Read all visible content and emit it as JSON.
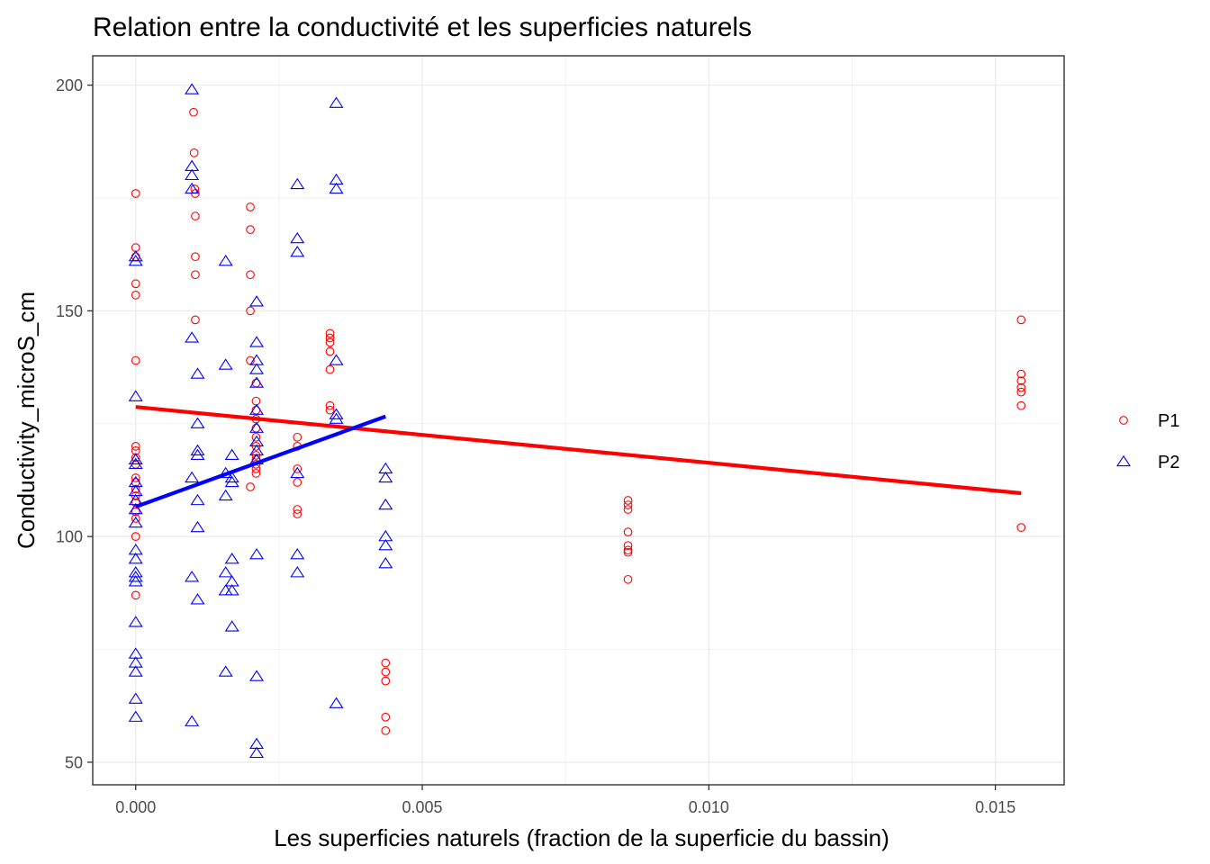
{
  "chart_data": {
    "type": "scatter",
    "title": "Relation entre la conductivité et les superficies naturels",
    "xlabel": "Les superficies naturels (fraction de la superficie du bassin)",
    "ylabel": "Conductivity_microS_cm",
    "xlim": [
      -0.00075,
      0.0162
    ],
    "ylim": [
      45,
      206.5
    ],
    "x_ticks": [
      0.0,
      0.005,
      0.01,
      0.015
    ],
    "x_tick_labels": [
      "0.000",
      "0.005",
      "0.010",
      "0.015"
    ],
    "y_ticks": [
      50,
      100,
      150,
      200
    ],
    "y_tick_labels": [
      "50",
      "100",
      "150",
      "200"
    ],
    "grid": true,
    "legend_position": "right",
    "series": [
      {
        "name": "P1",
        "marker": "circle",
        "color": "#ff0000",
        "points": [
          [
            0.0,
            176
          ],
          [
            0.0,
            164
          ],
          [
            0.0,
            162
          ],
          [
            0.0,
            156
          ],
          [
            0.0,
            153.5
          ],
          [
            0.0,
            139
          ],
          [
            0.0,
            120
          ],
          [
            0.0,
            119
          ],
          [
            0.0,
            117.5
          ],
          [
            0.0,
            116
          ],
          [
            0.0,
            113
          ],
          [
            0.0,
            112
          ],
          [
            0.0,
            110.5
          ],
          [
            0.0,
            109
          ],
          [
            0.0,
            107.5
          ],
          [
            0.0,
            105.5
          ],
          [
            0.0,
            104
          ],
          [
            0.0,
            100
          ],
          [
            0.0,
            87
          ],
          [
            0.00101,
            194
          ],
          [
            0.00102,
            185
          ],
          [
            0.00103,
            177
          ],
          [
            0.00104,
            176
          ],
          [
            0.00104,
            171
          ],
          [
            0.00104,
            162
          ],
          [
            0.00104,
            158
          ],
          [
            0.00104,
            148
          ],
          [
            0.002,
            173
          ],
          [
            0.002,
            168
          ],
          [
            0.002,
            158
          ],
          [
            0.002,
            150
          ],
          [
            0.002,
            139
          ],
          [
            0.0021,
            134
          ],
          [
            0.0021,
            130
          ],
          [
            0.0021,
            128
          ],
          [
            0.0021,
            126
          ],
          [
            0.0021,
            124
          ],
          [
            0.0021,
            122
          ],
          [
            0.0021,
            120
          ],
          [
            0.0021,
            118
          ],
          [
            0.0021,
            117
          ],
          [
            0.0021,
            116
          ],
          [
            0.0021,
            115
          ],
          [
            0.0021,
            114
          ],
          [
            0.002,
            111
          ],
          [
            0.00282,
            122
          ],
          [
            0.00282,
            120
          ],
          [
            0.00282,
            115
          ],
          [
            0.00282,
            112
          ],
          [
            0.00282,
            106
          ],
          [
            0.00282,
            105
          ],
          [
            0.00339,
            145
          ],
          [
            0.00339,
            144
          ],
          [
            0.00339,
            143
          ],
          [
            0.00339,
            141
          ],
          [
            0.00339,
            137
          ],
          [
            0.00339,
            129
          ],
          [
            0.00339,
            128
          ],
          [
            0.00436,
            72
          ],
          [
            0.00436,
            70
          ],
          [
            0.00436,
            68
          ],
          [
            0.00436,
            60
          ],
          [
            0.00436,
            57
          ],
          [
            0.00859,
            108
          ],
          [
            0.00859,
            107
          ],
          [
            0.00859,
            106
          ],
          [
            0.00859,
            101
          ],
          [
            0.00859,
            98
          ],
          [
            0.00859,
            97
          ],
          [
            0.00859,
            96.5
          ],
          [
            0.00859,
            90.5
          ],
          [
            0.01545,
            148
          ],
          [
            0.01545,
            136
          ],
          [
            0.01545,
            134.5
          ],
          [
            0.01545,
            133
          ],
          [
            0.01545,
            132
          ],
          [
            0.01545,
            129
          ],
          [
            0.01545,
            102
          ]
        ],
        "trend": [
          [
            0.0,
            128.7
          ],
          [
            0.01545,
            109.6
          ]
        ]
      },
      {
        "name": "P2",
        "marker": "triangle",
        "color": "#0000ff",
        "points": [
          [
            0.0,
            162
          ],
          [
            0.0,
            161
          ],
          [
            0.0,
            131
          ],
          [
            0.0,
            117
          ],
          [
            0.0,
            116
          ],
          [
            0.0,
            112
          ],
          [
            0.0,
            110
          ],
          [
            0.0,
            108
          ],
          [
            0.0,
            106
          ],
          [
            0.0,
            103
          ],
          [
            0.0,
            97
          ],
          [
            0.0,
            95
          ],
          [
            0.0,
            92
          ],
          [
            0.0,
            91
          ],
          [
            0.0,
            90
          ],
          [
            0.0,
            81
          ],
          [
            0.0,
            74
          ],
          [
            0.0,
            72
          ],
          [
            0.0,
            70
          ],
          [
            0.0,
            64
          ],
          [
            0.0,
            60
          ],
          [
            0.00098,
            199
          ],
          [
            0.00098,
            182
          ],
          [
            0.00098,
            180
          ],
          [
            0.00098,
            177
          ],
          [
            0.00098,
            144
          ],
          [
            0.00098,
            113
          ],
          [
            0.00098,
            91
          ],
          [
            0.00098,
            59
          ],
          [
            0.00108,
            136
          ],
          [
            0.00108,
            125
          ],
          [
            0.00108,
            119
          ],
          [
            0.00108,
            118
          ],
          [
            0.00108,
            108
          ],
          [
            0.00108,
            102
          ],
          [
            0.00108,
            86
          ],
          [
            0.00157,
            161
          ],
          [
            0.00157,
            138
          ],
          [
            0.00157,
            114
          ],
          [
            0.00157,
            109
          ],
          [
            0.00157,
            92
          ],
          [
            0.00157,
            88
          ],
          [
            0.00157,
            70
          ],
          [
            0.00168,
            118
          ],
          [
            0.00168,
            113
          ],
          [
            0.00168,
            112
          ],
          [
            0.00168,
            95
          ],
          [
            0.00168,
            90
          ],
          [
            0.00168,
            88
          ],
          [
            0.00168,
            80
          ],
          [
            0.00211,
            152
          ],
          [
            0.00211,
            143
          ],
          [
            0.00211,
            139
          ],
          [
            0.00211,
            137
          ],
          [
            0.00211,
            134
          ],
          [
            0.00211,
            128
          ],
          [
            0.00211,
            124
          ],
          [
            0.00211,
            121
          ],
          [
            0.00211,
            119
          ],
          [
            0.00211,
            117
          ],
          [
            0.00211,
            96
          ],
          [
            0.00211,
            69
          ],
          [
            0.00211,
            54
          ],
          [
            0.00211,
            52
          ],
          [
            0.00282,
            178
          ],
          [
            0.00282,
            166
          ],
          [
            0.00282,
            163
          ],
          [
            0.00282,
            114
          ],
          [
            0.00282,
            96
          ],
          [
            0.00282,
            92
          ],
          [
            0.0035,
            196
          ],
          [
            0.0035,
            179
          ],
          [
            0.0035,
            177
          ],
          [
            0.0035,
            139
          ],
          [
            0.0035,
            127
          ],
          [
            0.0035,
            126
          ],
          [
            0.0035,
            63
          ],
          [
            0.00436,
            115
          ],
          [
            0.00436,
            113
          ],
          [
            0.00436,
            107
          ],
          [
            0.00436,
            100
          ],
          [
            0.00436,
            98
          ],
          [
            0.00436,
            94
          ]
        ],
        "trend": [
          [
            0.0,
            106.6
          ],
          [
            0.00436,
            126.6
          ]
        ]
      }
    ]
  }
}
